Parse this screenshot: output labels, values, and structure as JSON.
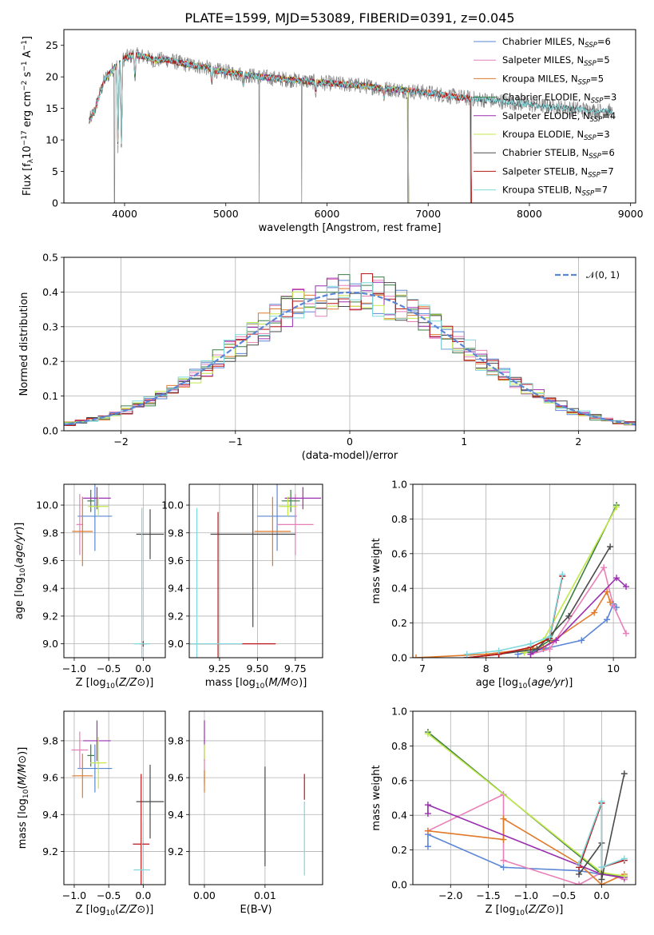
{
  "title": "PLATE=1599, MJD=53089, FIBERID=0391, z=0.045",
  "colors": {
    "Chabrier MILES": "#5b86d6",
    "Salpeter MILES": "#e87fb8",
    "Kroupa MILES": "#e07a2a",
    "Chabrier ELODIE": "#3a7d45",
    "Salpeter ELODIE": "#9a2fb0",
    "Kroupa ELODIE": "#c3e84a",
    "Chabrier STELIB": "#4a4a4a",
    "Salpeter STELIB": "#b8161a",
    "Kroupa STELIB": "#7fd8dc",
    "data": "#7f7f7f",
    "normal": "#5b86d6"
  },
  "legend_spectrum": [
    {
      "model": "Chabrier MILES",
      "text": "Chabrier MILES, N",
      "sub": "SSP",
      "tail": "=6"
    },
    {
      "model": "Salpeter MILES",
      "text": "Salpeter MILES, N",
      "sub": "SSP",
      "tail": "=5"
    },
    {
      "model": "Kroupa MILES",
      "text": "Kroupa MILES, N",
      "sub": "SSP",
      "tail": "=5"
    },
    {
      "model": "Chabrier ELODIE",
      "text": "Chabrier ELODIE, N",
      "sub": "SSP",
      "tail": "=3"
    },
    {
      "model": "Salpeter ELODIE",
      "text": "Salpeter ELODIE, N",
      "sub": "SSP",
      "tail": "=4"
    },
    {
      "model": "Kroupa ELODIE",
      "text": "Kroupa ELODIE, N",
      "sub": "SSP",
      "tail": "=3"
    },
    {
      "model": "Chabrier STELIB",
      "text": "Chabrier STELIB, N",
      "sub": "SSP",
      "tail": "=6"
    },
    {
      "model": "Salpeter STELIB",
      "text": "Salpeter STELIB, N",
      "sub": "SSP",
      "tail": "=7"
    },
    {
      "model": "Kroupa STELIB",
      "text": "Kroupa STELIB, N",
      "sub": "SSP",
      "tail": "=7"
    }
  ],
  "legend_hist": "𝒩(0, 1)",
  "chart_data": [
    {
      "id": "spectrum",
      "type": "line",
      "title": "PLATE=1599, MJD=53089, FIBERID=0391, z=0.045",
      "xlabel": "wavelength [Angstrom, rest frame]",
      "ylabel": "Flux [f_λ 10^-17 erg cm^-2 s^-1 A^-1]",
      "xlim": [
        3400,
        9050
      ],
      "ylim": [
        0,
        27.5
      ],
      "xticks": [
        4000,
        5000,
        6000,
        7000,
        8000,
        9000
      ],
      "yticks": [
        0,
        5,
        10,
        15,
        20,
        25
      ],
      "grid": false,
      "legend": "top-right",
      "continuum": [
        [
          3650,
          13.0
        ],
        [
          3700,
          14.5
        ],
        [
          3800,
          19.5
        ],
        [
          3900,
          21.5
        ],
        [
          4000,
          23.0
        ],
        [
          4100,
          23.5
        ],
        [
          4200,
          23.2
        ],
        [
          4300,
          22.6
        ],
        [
          4400,
          22.8
        ],
        [
          4500,
          22.4
        ],
        [
          4600,
          22.0
        ],
        [
          4700,
          21.8
        ],
        [
          4800,
          21.5
        ],
        [
          4900,
          21.0
        ],
        [
          5000,
          20.8
        ],
        [
          5200,
          20.3
        ],
        [
          5400,
          19.9
        ],
        [
          5600,
          19.6
        ],
        [
          5800,
          19.3
        ],
        [
          6000,
          19.0
        ],
        [
          6200,
          18.8
        ],
        [
          6400,
          18.5
        ],
        [
          6600,
          18.1
        ],
        [
          6800,
          17.8
        ],
        [
          7000,
          17.5
        ],
        [
          7200,
          17.0
        ],
        [
          7400,
          16.6
        ],
        [
          7600,
          16.3
        ],
        [
          7800,
          16.0
        ],
        [
          8000,
          15.6
        ],
        [
          8200,
          15.3
        ],
        [
          8400,
          15.0
        ],
        [
          8600,
          14.7
        ],
        [
          8800,
          14.5
        ]
      ],
      "absorption_features": [
        [
          3934,
          7.0
        ],
        [
          3969,
          8.0
        ],
        [
          4102,
          19.5
        ],
        [
          4861,
          19.0
        ],
        [
          5175,
          18.5
        ],
        [
          5890,
          17.5
        ],
        [
          6563,
          16.5
        ]
      ],
      "data_spikes": [
        [
          3900,
          0.0
        ],
        [
          5330,
          0.0
        ],
        [
          5750,
          0.0
        ],
        [
          6800,
          0.0
        ],
        [
          7420,
          0.0
        ]
      ]
    },
    {
      "id": "residuals",
      "type": "line",
      "xlabel": "(data-model)/error",
      "ylabel": "Normed distribution",
      "xlim": [
        -2.5,
        2.5
      ],
      "ylim": [
        0,
        0.5
      ],
      "xticks": [
        -2,
        -1,
        0,
        1,
        2
      ],
      "yticks": [
        0.0,
        0.1,
        0.2,
        0.3,
        0.4,
        0.5
      ],
      "grid": true,
      "legend": "top-right",
      "series_note": "9 step histograms (one per model) plus dashed standard normal curve",
      "bin_width": 0.1
    },
    {
      "id": "Z_vs_age",
      "type": "scatter",
      "xlabel": "Z [log10(Z/Z⊙)]",
      "ylabel": "age [log10(age/yr)]",
      "xlim": [
        -1.15,
        0.32
      ],
      "ylim": [
        8.9,
        10.15
      ],
      "xticks": [
        -1.0,
        -0.5,
        0.0
      ],
      "yticks": [
        9.0,
        9.2,
        9.4,
        9.6,
        9.8,
        10.0
      ],
      "grid": true,
      "points": [
        {
          "model": "Chabrier MILES",
          "x": -0.7,
          "xerr": 0.25,
          "y": 9.92,
          "yerr": 0.25
        },
        {
          "model": "Salpeter MILES",
          "x": -0.92,
          "xerr": 0.05,
          "y": 9.86,
          "yerr": 0.22
        },
        {
          "model": "Kroupa MILES",
          "x": -0.88,
          "xerr": 0.15,
          "y": 9.81,
          "yerr": 0.25
        },
        {
          "model": "Chabrier ELODIE",
          "x": -0.76,
          "xerr": 0.05,
          "y": 10.03,
          "yerr": 0.08
        },
        {
          "model": "Salpeter ELODIE",
          "x": -0.67,
          "xerr": 0.2,
          "y": 10.05,
          "yerr": 0.08
        },
        {
          "model": "Kroupa ELODIE",
          "x": -0.65,
          "xerr": 0.15,
          "y": 9.99,
          "yerr": 0.07
        },
        {
          "model": "Chabrier STELIB",
          "x": 0.1,
          "xerr": 0.2,
          "y": 9.79,
          "yerr": 0.18
        },
        {
          "model": "Salpeter STELIB",
          "x": 0.0,
          "xerr": 0.05,
          "y": 9.0,
          "yerr": 0.02
        },
        {
          "model": "Kroupa STELIB",
          "x": -0.02,
          "xerr": 0.12,
          "y": 9.0,
          "yerr": 0.98
        }
      ]
    },
    {
      "id": "mass_vs_age",
      "type": "scatter",
      "xlabel": "mass [log10(M/M⊙)]",
      "ylabel": "",
      "xlim": [
        9.05,
        9.93
      ],
      "ylim": [
        8.9,
        10.15
      ],
      "xticks": [
        9.25,
        9.5,
        9.75
      ],
      "yticks": [
        9.0,
        9.2,
        9.4,
        9.6,
        9.8,
        10.0
      ],
      "grid": true,
      "points": [
        {
          "model": "Chabrier MILES",
          "x": 9.63,
          "xerr": 0.13,
          "y": 9.92,
          "yerr": 0.25
        },
        {
          "model": "Salpeter MILES",
          "x": 9.75,
          "xerr": 0.12,
          "y": 9.86,
          "yerr": 0.22
        },
        {
          "model": "Kroupa MILES",
          "x": 9.6,
          "xerr": 0.12,
          "y": 9.81,
          "yerr": 0.25
        },
        {
          "model": "Chabrier ELODIE",
          "x": 9.72,
          "xerr": 0.06,
          "y": 10.03,
          "yerr": 0.08
        },
        {
          "model": "Salpeter ELODIE",
          "x": 9.8,
          "xerr": 0.12,
          "y": 10.05,
          "yerr": 0.08
        },
        {
          "model": "Kroupa ELODIE",
          "x": 9.7,
          "xerr": 0.06,
          "y": 9.99,
          "yerr": 0.07
        },
        {
          "model": "Chabrier STELIB",
          "x": 9.47,
          "xerr": 0.28,
          "y": 9.79,
          "yerr": 0.67
        },
        {
          "model": "Salpeter STELIB",
          "x": 9.24,
          "xerr": 0.38,
          "y": 9.0,
          "yerr": 0.95
        },
        {
          "model": "Kroupa STELIB",
          "x": 9.1,
          "xerr": 0.3,
          "y": 9.0,
          "yerr": 0.98
        }
      ]
    },
    {
      "id": "age_vs_massweight",
      "type": "line",
      "xlabel": "age [log10(age/yr)]",
      "ylabel": "mass weight",
      "xlim": [
        6.85,
        10.35
      ],
      "ylim": [
        0,
        1
      ],
      "xticks": [
        7,
        8,
        9,
        10
      ],
      "yticks": [
        0.0,
        0.2,
        0.4,
        0.6,
        0.8,
        1.0
      ],
      "grid": true,
      "series": [
        {
          "model": "Chabrier MILES",
          "x": [
            8.5,
            8.9,
            9.5,
            9.9,
            10.0,
            10.05
          ],
          "y": [
            0.02,
            0.05,
            0.1,
            0.22,
            0.31,
            0.29
          ]
        },
        {
          "model": "Salpeter MILES",
          "x": [
            8.7,
            9.0,
            9.85,
            10.0,
            10.2
          ],
          "y": [
            0.02,
            0.05,
            0.52,
            0.3,
            0.14
          ]
        },
        {
          "model": "Kroupa MILES",
          "x": [
            6.9,
            8.0,
            8.9,
            9.7,
            9.9,
            9.95
          ],
          "y": [
            0.0,
            0.02,
            0.06,
            0.26,
            0.38,
            0.32
          ]
        },
        {
          "model": "Chabrier ELODIE",
          "x": [
            8.7,
            9.0,
            10.05
          ],
          "y": [
            0.03,
            0.1,
            0.88
          ]
        },
        {
          "model": "Salpeter ELODIE",
          "x": [
            8.7,
            9.1,
            10.05,
            10.2
          ],
          "y": [
            0.02,
            0.1,
            0.46,
            0.41
          ]
        },
        {
          "model": "Kroupa ELODIE",
          "x": [
            8.6,
            8.9,
            10.05
          ],
          "y": [
            0.03,
            0.1,
            0.87
          ]
        },
        {
          "model": "Chabrier STELIB",
          "x": [
            7.7,
            8.2,
            8.8,
            9.3,
            9.95
          ],
          "y": [
            0.0,
            0.02,
            0.05,
            0.24,
            0.64
          ]
        },
        {
          "model": "Salpeter STELIB",
          "x": [
            7.7,
            8.2,
            8.7,
            9.0,
            9.2
          ],
          "y": [
            0.0,
            0.02,
            0.06,
            0.11,
            0.47
          ]
        },
        {
          "model": "Kroupa STELIB",
          "x": [
            7.7,
            8.2,
            8.7,
            9.0,
            9.2
          ],
          "y": [
            0.02,
            0.04,
            0.08,
            0.12,
            0.48
          ]
        }
      ]
    },
    {
      "id": "Z_vs_mass",
      "type": "scatter",
      "xlabel": "Z [log10(Z/Z⊙)]",
      "ylabel": "mass [log10(M/M⊙)]",
      "xlim": [
        -1.15,
        0.32
      ],
      "ylim": [
        9.02,
        9.96
      ],
      "xticks": [
        -1.0,
        -0.5,
        0.0
      ],
      "yticks": [
        9.2,
        9.4,
        9.6,
        9.8
      ],
      "grid": true,
      "points": [
        {
          "model": "Chabrier MILES",
          "x": -0.7,
          "xerr": 0.25,
          "y": 9.65,
          "yerr": 0.13
        },
        {
          "model": "Salpeter MILES",
          "x": -0.92,
          "xerr": 0.12,
          "y": 9.75,
          "yerr": 0.1
        },
        {
          "model": "Kroupa MILES",
          "x": -0.88,
          "xerr": 0.15,
          "y": 9.61,
          "yerr": 0.12
        },
        {
          "model": "Chabrier ELODIE",
          "x": -0.76,
          "xerr": 0.05,
          "y": 9.72,
          "yerr": 0.06
        },
        {
          "model": "Salpeter ELODIE",
          "x": -0.67,
          "xerr": 0.2,
          "y": 9.8,
          "yerr": 0.11
        },
        {
          "model": "Kroupa ELODIE",
          "x": -0.65,
          "xerr": 0.12,
          "y": 9.68,
          "yerr": 0.14
        },
        {
          "model": "Chabrier STELIB",
          "x": 0.1,
          "xerr": 0.2,
          "y": 9.47,
          "yerr": 0.2
        },
        {
          "model": "Salpeter STELIB",
          "x": -0.03,
          "xerr": 0.12,
          "y": 9.24,
          "yerr": 0.38
        },
        {
          "model": "Kroupa STELIB",
          "x": -0.02,
          "xerr": 0.12,
          "y": 9.1,
          "yerr": 0.26
        }
      ]
    },
    {
      "id": "EBV_vs_mass",
      "type": "scatter",
      "xlabel": "E(B-V)",
      "ylabel": "",
      "xlim": [
        -0.0025,
        0.0195
      ],
      "ylim": [
        9.02,
        9.96
      ],
      "xticks": [
        0.0,
        0.01
      ],
      "xtick_labels": [
        "0.00",
        "0.01"
      ],
      "yticks": [
        9.2,
        9.4,
        9.6,
        9.8
      ],
      "grid": true,
      "points": [
        {
          "model": "Salpeter ELODIE",
          "x": 0.0,
          "xerr": 0.0,
          "y": 9.8,
          "yerr": 0.11
        },
        {
          "model": "Kroupa ELODIE",
          "x": 0.0,
          "xerr": 0.0,
          "y": 9.68,
          "yerr": 0.1
        },
        {
          "model": "Salpeter MILES",
          "x": 0.0,
          "xerr": 0.0,
          "y": 9.63,
          "yerr": 0.07
        },
        {
          "model": "Kroupa MILES",
          "x": 0.0,
          "xerr": 0.0,
          "y": 9.58,
          "yerr": 0.06
        },
        {
          "model": "Chabrier STELIB",
          "x": 0.01,
          "xerr": 0.0,
          "y": 9.39,
          "yerr": 0.27
        },
        {
          "model": "Salpeter STELIB",
          "x": 0.0165,
          "xerr": 0.0,
          "y": 9.55,
          "yerr": 0.07
        },
        {
          "model": "Kroupa STELIB",
          "x": 0.0165,
          "xerr": 0.0,
          "y": 9.27,
          "yerr": 0.2
        }
      ]
    },
    {
      "id": "Z_vs_massweight",
      "type": "line",
      "xlabel": "Z [log10(Z/Z⊙)]",
      "ylabel": "mass weight",
      "xlim": [
        -2.5,
        0.45
      ],
      "ylim": [
        0,
        1
      ],
      "xticks": [
        -2.0,
        -1.5,
        -1.0,
        -0.5,
        0.0
      ],
      "yticks": [
        0.0,
        0.2,
        0.4,
        0.6,
        0.8,
        1.0
      ],
      "grid": true,
      "series": [
        {
          "model": "Chabrier MILES",
          "x": [
            -2.3,
            -2.3,
            -1.3,
            -0.3,
            0.0,
            0.3
          ],
          "y": [
            0.22,
            0.29,
            0.1,
            0.08,
            0.06,
            0.05
          ]
        },
        {
          "model": "Salpeter MILES",
          "x": [
            -2.3,
            -1.3,
            -1.3,
            -0.3,
            0.0,
            0.3
          ],
          "y": [
            0.31,
            0.52,
            0.14,
            0.0,
            0.07,
            0.03
          ]
        },
        {
          "model": "Kroupa MILES",
          "x": [
            -2.3,
            -1.3,
            -1.3,
            -0.3,
            0.0,
            0.3
          ],
          "y": [
            0.31,
            0.26,
            0.38,
            0.12,
            0.0,
            0.06
          ]
        },
        {
          "model": "Chabrier ELODIE",
          "x": [
            -2.3,
            0.0,
            0.3
          ],
          "y": [
            0.88,
            0.06,
            0.05
          ]
        },
        {
          "model": "Salpeter ELODIE",
          "x": [
            -2.3,
            -2.3,
            0.0,
            0.3
          ],
          "y": [
            0.41,
            0.46,
            0.06,
            0.04
          ]
        },
        {
          "model": "Kroupa ELODIE",
          "x": [
            -2.3,
            0.0,
            0.3
          ],
          "y": [
            0.87,
            0.07,
            0.05
          ]
        },
        {
          "model": "Chabrier STELIB",
          "x": [
            -0.3,
            0.0,
            0.0,
            0.3
          ],
          "y": [
            0.06,
            0.24,
            0.03,
            0.64
          ]
        },
        {
          "model": "Salpeter STELIB",
          "x": [
            -0.3,
            0.0,
            0.0,
            0.3
          ],
          "y": [
            0.1,
            0.47,
            0.1,
            0.14
          ]
        },
        {
          "model": "Kroupa STELIB",
          "x": [
            -0.3,
            0.0,
            0.0,
            0.3
          ],
          "y": [
            0.12,
            0.48,
            0.1,
            0.15
          ]
        }
      ]
    }
  ]
}
